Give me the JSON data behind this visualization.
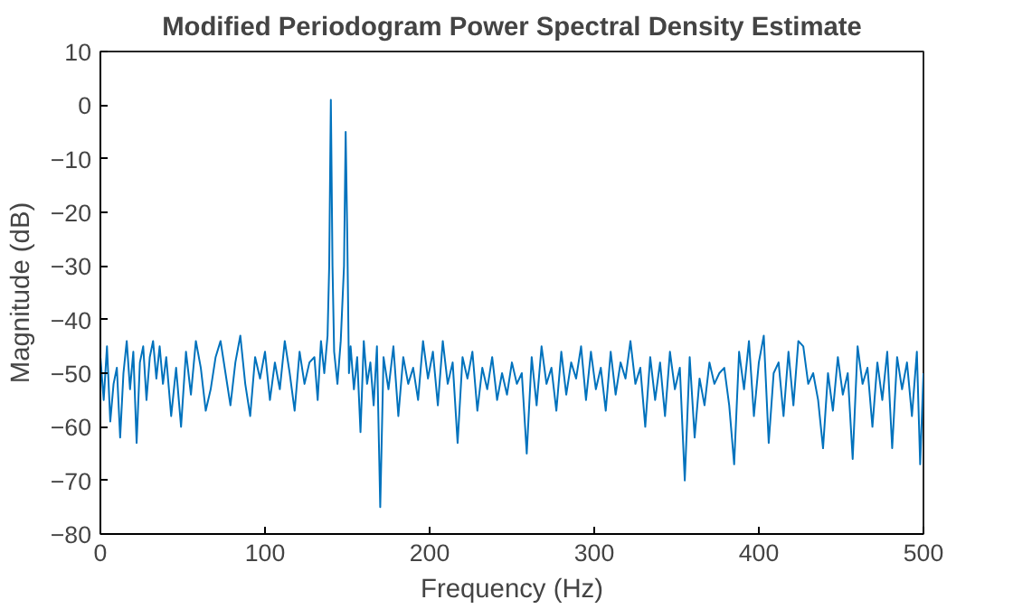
{
  "chart_data": {
    "type": "line",
    "title": "Modified Periodogram Power Spectral Density Estimate",
    "xlabel": "Frequency (Hz)",
    "ylabel": "Magnitude (dB)",
    "x": [
      0,
      2,
      4,
      6,
      8,
      10,
      12,
      14,
      16,
      18,
      20,
      22,
      24,
      26,
      28,
      30,
      32,
      34,
      36,
      38,
      40,
      43,
      46,
      49,
      52,
      55,
      58,
      61,
      64,
      67,
      70,
      73,
      76,
      79,
      82,
      85,
      88,
      91,
      94,
      97,
      100,
      103,
      106,
      109,
      112,
      115,
      118,
      121,
      124,
      127,
      130,
      132,
      134,
      136,
      138,
      139,
      140,
      141,
      142,
      144,
      146,
      148,
      149,
      150,
      151,
      152,
      154,
      156,
      158,
      160,
      162,
      164,
      166,
      168,
      170,
      172,
      175,
      178,
      181,
      184,
      187,
      190,
      193,
      196,
      199,
      202,
      205,
      208,
      211,
      214,
      217,
      220,
      223,
      226,
      229,
      232,
      235,
      238,
      241,
      244,
      247,
      250,
      253,
      256,
      259,
      262,
      265,
      268,
      271,
      274,
      277,
      280,
      283,
      286,
      289,
      292,
      295,
      298,
      301,
      304,
      307,
      310,
      313,
      316,
      319,
      322,
      325,
      328,
      331,
      334,
      337,
      340,
      343,
      346,
      349,
      352,
      355,
      358,
      361,
      364,
      367,
      370,
      373,
      376,
      379,
      382,
      385,
      388,
      391,
      394,
      397,
      400,
      403,
      406,
      409,
      412,
      415,
      418,
      421,
      424,
      427,
      430,
      433,
      436,
      439,
      442,
      445,
      448,
      451,
      454,
      457,
      460,
      463,
      466,
      469,
      472,
      475,
      478,
      481,
      484,
      487,
      490,
      493,
      496,
      498,
      500
    ],
    "series": [
      {
        "color": "#0072bd",
        "values": [
          -47,
          -55,
          -45,
          -59,
          -52,
          -49,
          -62,
          -50,
          -44,
          -53,
          -46,
          -63,
          -48,
          -45,
          -55,
          -47,
          -44,
          -51,
          -45,
          -52,
          -47,
          -58,
          -49,
          -60,
          -46,
          -54,
          -44,
          -49,
          -57,
          -53,
          -47,
          -44,
          -50,
          -56,
          -48,
          -43,
          -52,
          -58,
          -47,
          -51,
          -46,
          -55,
          -48,
          -53,
          -44,
          -50,
          -57,
          -46,
          -52,
          -48,
          -47,
          -55,
          -44,
          -50,
          -43,
          -30,
          1,
          -30,
          -46,
          -52,
          -44,
          -30,
          -5,
          -25,
          -50,
          -45,
          -53,
          -47,
          -61,
          -44,
          -52,
          -48,
          -56,
          -45,
          -75,
          -47,
          -53,
          -45,
          -58,
          -47,
          -52,
          -49,
          -55,
          -44,
          -51,
          -46,
          -56,
          -44,
          -52,
          -48,
          -63,
          -47,
          -51,
          -46,
          -57,
          -49,
          -53,
          -47,
          -55,
          -50,
          -54,
          -48,
          -52,
          -50,
          -65,
          -47,
          -56,
          -45,
          -52,
          -49,
          -57,
          -46,
          -54,
          -48,
          -51,
          -45,
          -55,
          -46,
          -53,
          -49,
          -57,
          -46,
          -54,
          -48,
          -51,
          -44,
          -52,
          -49,
          -60,
          -47,
          -55,
          -48,
          -58,
          -46,
          -53,
          -49,
          -70,
          -47,
          -62,
          -51,
          -56,
          -48,
          -52,
          -50,
          -49,
          -56,
          -67,
          -46,
          -53,
          -44,
          -58,
          -48,
          -43,
          -63,
          -50,
          -48,
          -58,
          -46,
          -56,
          -44,
          -45,
          -52,
          -50,
          -55,
          -64,
          -50,
          -57,
          -47,
          -54,
          -50,
          -66,
          -45,
          -52,
          -49,
          -60,
          -48,
          -55,
          -46,
          -64,
          -47,
          -53,
          -48,
          -58,
          -46,
          -67,
          -50
        ]
      }
    ],
    "xlim": [
      0,
      500
    ],
    "ylim": [
      -80,
      10
    ],
    "xticks": [
      0,
      100,
      200,
      300,
      400,
      500
    ],
    "yticks": [
      -80,
      -70,
      -60,
      -50,
      -40,
      -30,
      -20,
      -10,
      0,
      10
    ],
    "grid": false
  }
}
